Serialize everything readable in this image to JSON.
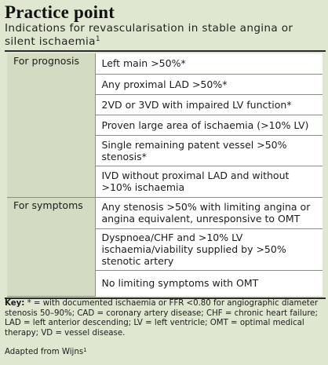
{
  "box": {
    "heading": "Practice point",
    "subtitle": "Indications for revascularisation in stable angina or silent ischaemia",
    "subtitle_ref": "1"
  },
  "table": {
    "groups": [
      {
        "category": "For prognosis",
        "criteria": [
          "Left main >50%*",
          "Any proximal LAD >50%*",
          "2VD or 3VD with impaired LV function*",
          "Proven large area of ischaemia (>10% LV)",
          "Single remaining patent vessel >50% stenosis*",
          "IVD without proximal LAD and without >10% ischaemia"
        ]
      },
      {
        "category": "For symptoms",
        "criteria": [
          "Any stenosis >50% with limiting angina or angina equivalent, unresponsive to OMT",
          "Dyspnoea/CHF and >10% LV ischaemia/viability supplied by >50% stenotic artery",
          "No limiting symptoms with OMT"
        ]
      }
    ]
  },
  "footer": {
    "key_label": "Key:",
    "key_text": " * = with documented ischaemia or FFR <0.80 for angiographic diameter stenosis 50–90%; CAD = coronary artery disease; CHF = chronic heart failure; LAD = left anterior descending; LV = left ventricle; OMT = optimal medical therapy; VD = vessel disease.",
    "adapted": "Adapted from Wijns",
    "adapted_ref": "1"
  },
  "colors": {
    "box_background": "#dfe7d0",
    "category_cell": "#d3dcc3",
    "criteria_cell": "#ffffff",
    "rule": "#2b2b2b"
  }
}
